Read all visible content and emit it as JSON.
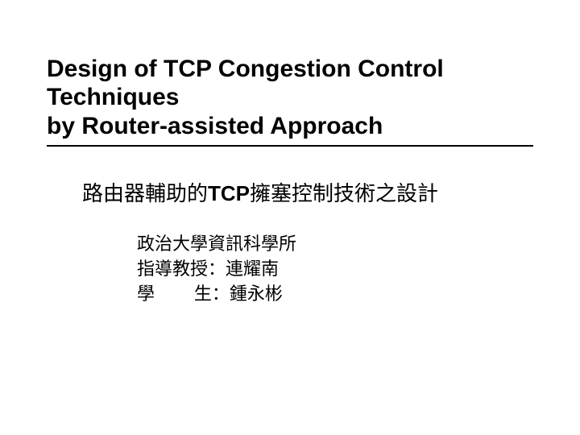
{
  "title_en_line1": "Design of TCP Congestion Control",
  "title_en_line2": "Techniques",
  "title_en_line3": "by Router-assisted Approach",
  "subtitle_zh_prefix": "路由器輔助的",
  "subtitle_zh_bold": "TCP",
  "subtitle_zh_suffix": "擁塞控制技術之設計",
  "dept": "政治大學資訊科學所",
  "advisor": "指導教授：連耀南",
  "student": "學        生：鍾永彬",
  "colors": {
    "text": "#000000",
    "background": "#ffffff",
    "rule": "#000000"
  },
  "fonts": {
    "title_size_pt": 30,
    "subtitle_size_pt": 26,
    "body_size_pt": 22
  }
}
